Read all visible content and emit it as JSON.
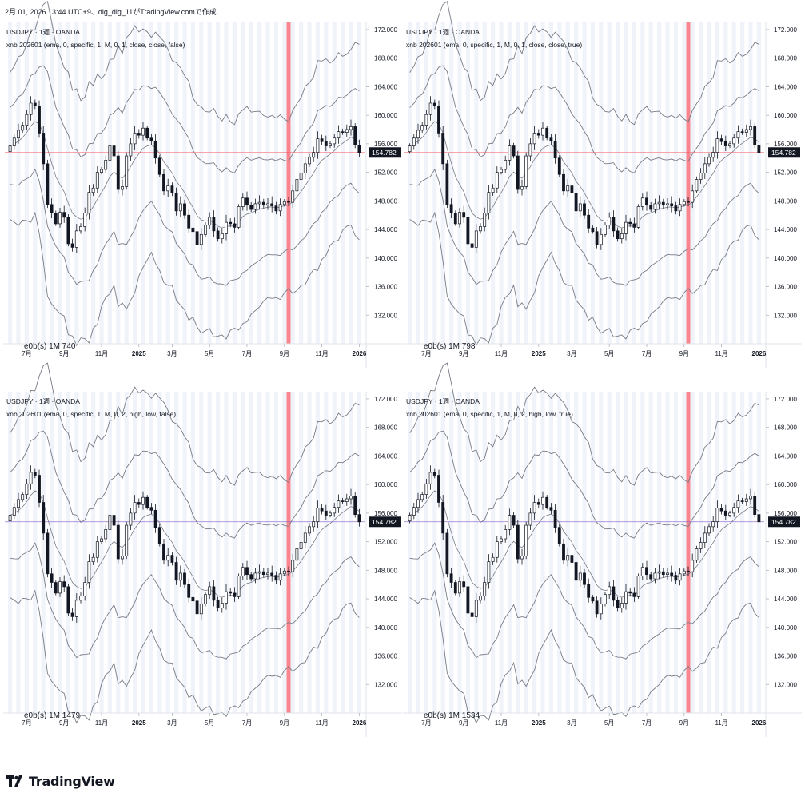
{
  "header": {
    "text": "2月 01, 2026 13:44 UTC+9、dig_dig_11がTradingView.comで作成"
  },
  "brand": {
    "logo_text": "TradingView"
  },
  "colors": {
    "candle": "#131722",
    "band": "#787b86",
    "highlight": "#f7525f",
    "stripe": "#f0f3fa",
    "price_label_bg": "#131722"
  },
  "chart_data": [
    {
      "type": "candlestick",
      "symbol_label": "USDJPY · 1週 · OANDA",
      "indicator_label": "xnb 202601 (ema, 0, specific, 1, M, 0, 1, close, close, false)",
      "stat_label": "e0b(s)  1M  740",
      "price_label": "154.782",
      "price_line_color": "#f7525f",
      "band_style": "close",
      "y_ticks": [
        "172.000",
        "168.000",
        "164.000",
        "160.000",
        "156.000",
        "152.000",
        "148.000",
        "144.000",
        "140.000",
        "136.000",
        "132.000"
      ],
      "x_ticks": [
        "7月",
        "9月",
        "11月",
        "2025",
        "3月",
        "5月",
        "7月",
        "9月",
        "11月",
        "2026"
      ],
      "ylim": [
        128,
        173
      ]
    },
    {
      "type": "candlestick",
      "symbol_label": "USDJPY · 1週 · OANDA",
      "indicator_label": "xnb 202601 (ema, 0, specific, 1, M, 0, 1, close, close, true)",
      "stat_label": "e0b(s)  1M  798",
      "price_label": "154.782",
      "price_line_color": "#f7525f",
      "band_style": "close",
      "y_ticks": [
        "172.000",
        "168.000",
        "164.000",
        "160.000",
        "156.000",
        "152.000",
        "148.000",
        "144.000",
        "140.000",
        "136.000",
        "132.000"
      ],
      "x_ticks": [
        "7月",
        "9月",
        "11月",
        "2025",
        "3月",
        "5月",
        "7月",
        "9月",
        "11月",
        "2026"
      ],
      "ylim": [
        128,
        173
      ]
    },
    {
      "type": "candlestick",
      "symbol_label": "USDJPY · 1週 · OANDA",
      "indicator_label": "xnb 202601 (ema, 0, specific, 1, M, 0, 2, high, low, false)",
      "stat_label": "e0b(s)  1M  1479",
      "price_label": "154.782",
      "price_line_color": "#7e57c2",
      "band_style": "highlow",
      "y_ticks": [
        "172.000",
        "168.000",
        "164.000",
        "160.000",
        "156.000",
        "152.000",
        "148.000",
        "144.000",
        "140.000",
        "136.000",
        "132.000"
      ],
      "x_ticks": [
        "7月",
        "9月",
        "11月",
        "2025",
        "3月",
        "5月",
        "7月",
        "9月",
        "11月",
        "2026"
      ],
      "ylim": [
        128,
        173
      ]
    },
    {
      "type": "candlestick",
      "symbol_label": "USDJPY · 1週 · OANDA",
      "indicator_label": "xnb 202601 (ema, 0, specific, 1, M, 0, 2, high, low, true)",
      "stat_label": "e0b(s)  1M  1534",
      "price_label": "154.782",
      "price_line_color": "#7e57c2",
      "band_style": "highlow",
      "y_ticks": [
        "172.000",
        "168.000",
        "164.000",
        "160.000",
        "156.000",
        "152.000",
        "148.000",
        "144.000",
        "140.000",
        "136.000",
        "132.000"
      ],
      "x_ticks": [
        "7月",
        "9月",
        "11月",
        "2025",
        "3月",
        "5月",
        "7月",
        "9月",
        "11月",
        "2026"
      ],
      "ylim": [
        128,
        173
      ]
    }
  ],
  "series_close": [
    155.7,
    156.8,
    157.9,
    158.6,
    160.1,
    161.7,
    161.3,
    157.5,
    153.2,
    147.5,
    146.3,
    144.8,
    146.4,
    145.7,
    142.0,
    141.5,
    143.8,
    144.4,
    146.3,
    149.2,
    149.8,
    152.0,
    152.4,
    153.7,
    155.7,
    154.3,
    149.6,
    150.0,
    154.3,
    156.0,
    157.5,
    157.2,
    158.2,
    156.8,
    156.4,
    154.0,
    151.7,
    149.4,
    150.1,
    149.1,
    146.6,
    147.6,
    146.0,
    144.2,
    143.7,
    141.9,
    143.3,
    144.6,
    145.7,
    143.8,
    142.7,
    143.4,
    145.0,
    144.8,
    144.3,
    147.2,
    148.4,
    147.4,
    146.8,
    147.6,
    147.8,
    147.4,
    147.6,
    147.3,
    146.6,
    147.5,
    147.9,
    147.8,
    149.4,
    151.0,
    151.9,
    153.2,
    154.1,
    154.8,
    156.7,
    156.3,
    155.7,
    156.0,
    156.8,
    157.7,
    157.6,
    158.0,
    158.4,
    155.8,
    154.78
  ],
  "x_tick_index": [
    4,
    13,
    22,
    31,
    39,
    48,
    57,
    66,
    75,
    84
  ]
}
